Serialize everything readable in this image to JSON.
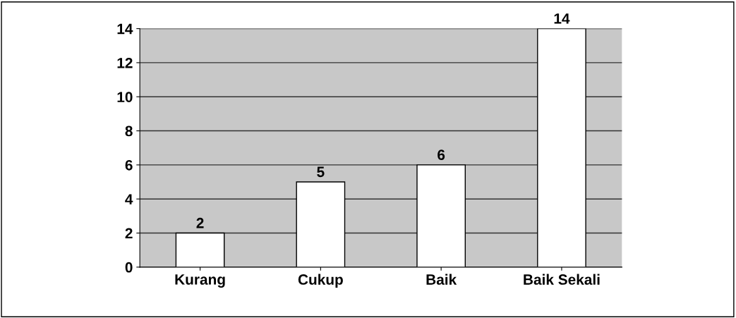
{
  "chart_data": {
    "type": "bar",
    "categories": [
      "Kurang",
      "Cukup",
      "Baik",
      "Baik Sekali"
    ],
    "values": [
      2,
      5,
      6,
      14
    ],
    "color": "#ffffff",
    "ylim": [
      0,
      14
    ],
    "yticks": [
      0,
      2,
      4,
      6,
      8,
      10,
      12,
      14
    ],
    "grid": "y",
    "data_labels": true
  }
}
